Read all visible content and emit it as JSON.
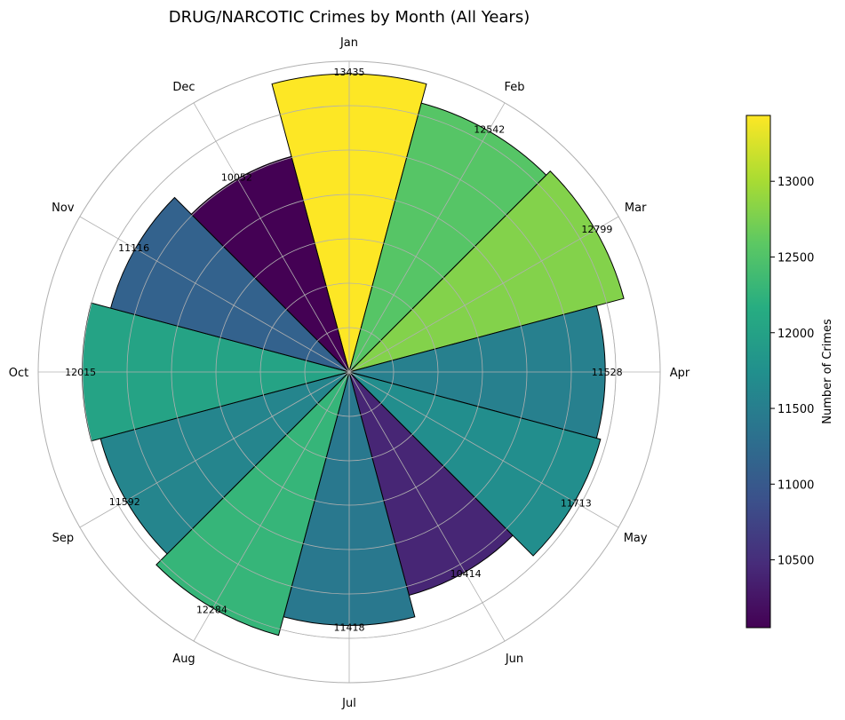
{
  "chart_data": {
    "type": "polar-bar",
    "title": "DRUG/NARCOTIC Crimes by Month (All Years)",
    "categories": [
      "Jan",
      "Feb",
      "Mar",
      "Apr",
      "May",
      "Jun",
      "Jul",
      "Aug",
      "Sep",
      "Oct",
      "Nov",
      "Dec"
    ],
    "values": [
      13435,
      12542,
      12799,
      11528,
      11713,
      10414,
      11418,
      12284,
      11592,
      12015,
      11116,
      10052
    ],
    "radial_max": 14000,
    "radial_grid_step": 2000,
    "grid": true,
    "direction": "clockwise",
    "start_angle": "top",
    "colormap": "viridis",
    "colorbar": {
      "label": "Number of Crimes",
      "range": [
        10052,
        13435
      ],
      "ticks": [
        "10500",
        "11000",
        "11500",
        "12000",
        "12500",
        "13000"
      ],
      "tick_values": [
        10500,
        11000,
        11500,
        12000,
        12500,
        13000
      ]
    },
    "edge_color": "#000000",
    "grid_color": "#b0b0b0"
  }
}
